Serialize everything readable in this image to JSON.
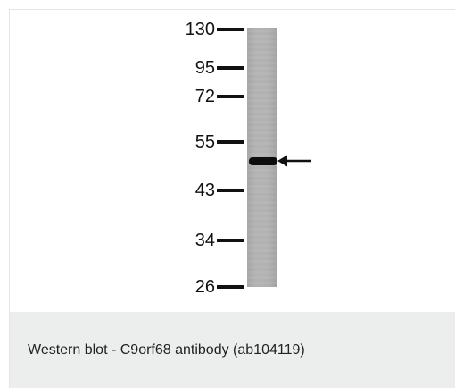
{
  "figure": {
    "markers": [
      {
        "label": "130",
        "kda": 130
      },
      {
        "label": "95",
        "kda": 95
      },
      {
        "label": "72",
        "kda": 72
      },
      {
        "label": "55",
        "kda": 55
      },
      {
        "label": "43",
        "kda": 43
      },
      {
        "label": "34",
        "kda": 34
      },
      {
        "label": "26",
        "kda": 26
      }
    ],
    "band_kda": 50,
    "colors": {
      "lane": "#b0b0b0",
      "band": "#0d0d0d",
      "ink": "#111111",
      "caption_bg": "#eceeee"
    },
    "icons": [
      "arrow-left-icon"
    ]
  },
  "caption": {
    "text": "Western blot - C9orf68 antibody (ab104119)"
  }
}
